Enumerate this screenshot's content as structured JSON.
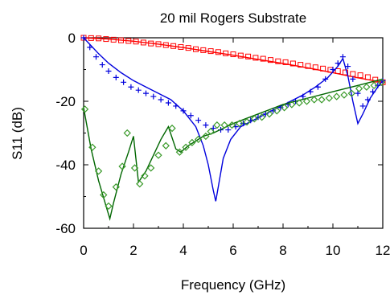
{
  "chart_data": {
    "type": "line",
    "title": "20 mil  Rogers Substrate",
    "xlabel": "Frequency (GHz)",
    "ylabel": "S11 (dB)",
    "xlim": [
      0,
      12
    ],
    "ylim": [
      -60,
      0
    ],
    "xticks": [
      "0",
      "2",
      "4",
      "6",
      "8",
      "10",
      "12"
    ],
    "yticks": [
      "0",
      "-20",
      "-40",
      "-60"
    ],
    "grid": false,
    "series": [
      {
        "style": "line",
        "color": "#ff0000",
        "x": [
          0,
          1,
          2,
          3,
          4,
          5,
          6,
          7,
          8,
          9,
          10,
          11,
          12
        ],
        "y": [
          0,
          -0.4,
          -1.1,
          -2.0,
          -3.1,
          -4.3,
          -5.5,
          -6.8,
          -8.1,
          -9.5,
          -11.0,
          -12.6,
          -14.0
        ]
      },
      {
        "style": "marker",
        "marker": "square",
        "color": "#ff0000",
        "x": [
          0,
          0.3,
          0.6,
          0.9,
          1.2,
          1.5,
          1.8,
          2.1,
          2.4,
          2.7,
          3.0,
          3.3,
          3.6,
          3.9,
          4.2,
          4.5,
          4.8,
          5.1,
          5.4,
          5.7,
          6.0,
          6.3,
          6.6,
          6.9,
          7.2,
          7.5,
          7.8,
          8.1,
          8.4,
          8.7,
          9.0,
          9.3,
          9.6,
          9.9,
          10.2,
          10.5,
          10.8,
          11.1,
          11.4,
          11.7,
          12.0
        ],
        "y": [
          0,
          -0.1,
          -0.2,
          -0.4,
          -0.6,
          -0.8,
          -1.0,
          -1.2,
          -1.5,
          -1.8,
          -2.0,
          -2.3,
          -2.6,
          -2.9,
          -3.2,
          -3.6,
          -3.9,
          -4.2,
          -4.5,
          -4.9,
          -5.2,
          -5.6,
          -5.9,
          -6.3,
          -6.6,
          -7.0,
          -7.4,
          -7.7,
          -8.1,
          -8.5,
          -8.9,
          -9.3,
          -9.7,
          -10.1,
          -10.5,
          -10.9,
          -11.4,
          -11.8,
          -12.4,
          -13.2,
          -14.0
        ]
      },
      {
        "style": "line",
        "color": "#0000dd",
        "x": [
          0,
          0.3,
          0.6,
          1.0,
          1.5,
          2.0,
          2.5,
          3.0,
          3.5,
          4.0,
          4.5,
          4.8,
          5.0,
          5.2,
          5.3,
          5.4,
          5.6,
          5.9,
          6.3,
          6.8,
          7.3,
          7.8,
          8.3,
          8.8,
          9.3,
          9.8,
          10.2,
          10.4,
          10.6,
          10.8,
          11.0,
          11.2,
          11.5,
          11.8,
          12.0
        ],
        "y": [
          0,
          -2.5,
          -5.0,
          -8.0,
          -11.0,
          -13.5,
          -15.5,
          -17.5,
          -19.5,
          -23.0,
          -28.0,
          -34.0,
          -40.0,
          -48.0,
          -51.5,
          -47.0,
          -38.0,
          -32.0,
          -28.0,
          -26.0,
          -24.0,
          -22.0,
          -20.0,
          -18.0,
          -15.5,
          -12.5,
          -9.0,
          -6.5,
          -12.0,
          -20.0,
          -27.0,
          -24.0,
          -19.0,
          -15.5,
          -13.5
        ]
      },
      {
        "style": "marker",
        "marker": "plus",
        "color": "#0000dd",
        "x": [
          0,
          0.25,
          0.5,
          0.75,
          1.0,
          1.3,
          1.6,
          1.9,
          2.2,
          2.5,
          2.8,
          3.1,
          3.4,
          3.7,
          4.0,
          4.3,
          4.6,
          4.9,
          5.2,
          5.5,
          5.8,
          6.1,
          6.4,
          6.7,
          7.0,
          7.3,
          7.6,
          7.9,
          8.2,
          8.5,
          8.8,
          9.1,
          9.4,
          9.7,
          10.0,
          10.2,
          10.4,
          10.6,
          10.8,
          11.0,
          11.2,
          11.4,
          11.6,
          11.8,
          12.0
        ],
        "y": [
          0,
          -3.0,
          -6.0,
          -8.5,
          -10.5,
          -12.5,
          -14.0,
          -15.5,
          -16.5,
          -17.5,
          -18.5,
          -19.5,
          -20.5,
          -21.5,
          -23.0,
          -24.5,
          -26.0,
          -27.5,
          -28.5,
          -29.0,
          -29.0,
          -28.0,
          -27.0,
          -26.0,
          -25.0,
          -24.0,
          -23.0,
          -22.0,
          -21.0,
          -20.0,
          -18.5,
          -17.0,
          -15.5,
          -13.0,
          -10.0,
          -8.0,
          -6.0,
          -9.0,
          -13.0,
          -17.5,
          -21.5,
          -19.5,
          -17.0,
          -15.0,
          -13.5
        ]
      },
      {
        "style": "line",
        "color": "#006600",
        "x": [
          0,
          0.3,
          0.6,
          0.9,
          1.05,
          1.2,
          1.5,
          1.8,
          2.0,
          2.2,
          2.5,
          2.8,
          3.1,
          3.4,
          3.7,
          3.9,
          4.2,
          4.5,
          4.8,
          5.2,
          5.6,
          6.0,
          6.5,
          7.0,
          7.5,
          8.0,
          8.5,
          9.0,
          9.5,
          10.0,
          10.5,
          11.0,
          11.5,
          12.0
        ],
        "y": [
          -22.0,
          -35.0,
          -45.0,
          -53.0,
          -57.0,
          -52.0,
          -43.0,
          -36.0,
          -31.0,
          -45.5,
          -42.0,
          -37.0,
          -32.0,
          -28.0,
          -35.0,
          -36.0,
          -34.0,
          -32.5,
          -31.0,
          -30.0,
          -28.5,
          -27.0,
          -25.5,
          -24.0,
          -22.5,
          -21.0,
          -20.0,
          -19.0,
          -18.0,
          -17.0,
          -16.0,
          -15.0,
          -14.0,
          -13.0
        ]
      },
      {
        "style": "marker",
        "marker": "diamond",
        "color": "#3a9a2a",
        "x": [
          0.05,
          0.35,
          0.6,
          0.8,
          1.0,
          1.3,
          1.55,
          1.75,
          2.05,
          2.25,
          2.45,
          2.7,
          3.0,
          3.3,
          3.55,
          3.85,
          4.1,
          4.35,
          4.6,
          4.9,
          5.1,
          5.35,
          5.65,
          5.95,
          6.25,
          6.55,
          6.85,
          7.15,
          7.45,
          7.75,
          8.05,
          8.35,
          8.65,
          8.95,
          9.25,
          9.55,
          9.85,
          10.15,
          10.45,
          10.75,
          11.05,
          11.35,
          11.65,
          11.95
        ],
        "y": [
          -22.5,
          -34.5,
          -42.0,
          -49.5,
          -53.0,
          -47.0,
          -40.5,
          -30.0,
          -41.0,
          -46.0,
          -43.5,
          -41.0,
          -37.0,
          -34.0,
          -28.5,
          -36.0,
          -34.5,
          -33.0,
          -32.0,
          -31.0,
          -29.5,
          -27.5,
          -27.5,
          -27.5,
          -27.0,
          -26.5,
          -25.5,
          -25.0,
          -24.0,
          -23.0,
          -22.0,
          -21.0,
          -20.5,
          -20.0,
          -19.5,
          -19.5,
          -19.0,
          -18.5,
          -18.0,
          -17.5,
          -16.0,
          -15.5,
          -15.0,
          -14.0
        ]
      }
    ]
  }
}
